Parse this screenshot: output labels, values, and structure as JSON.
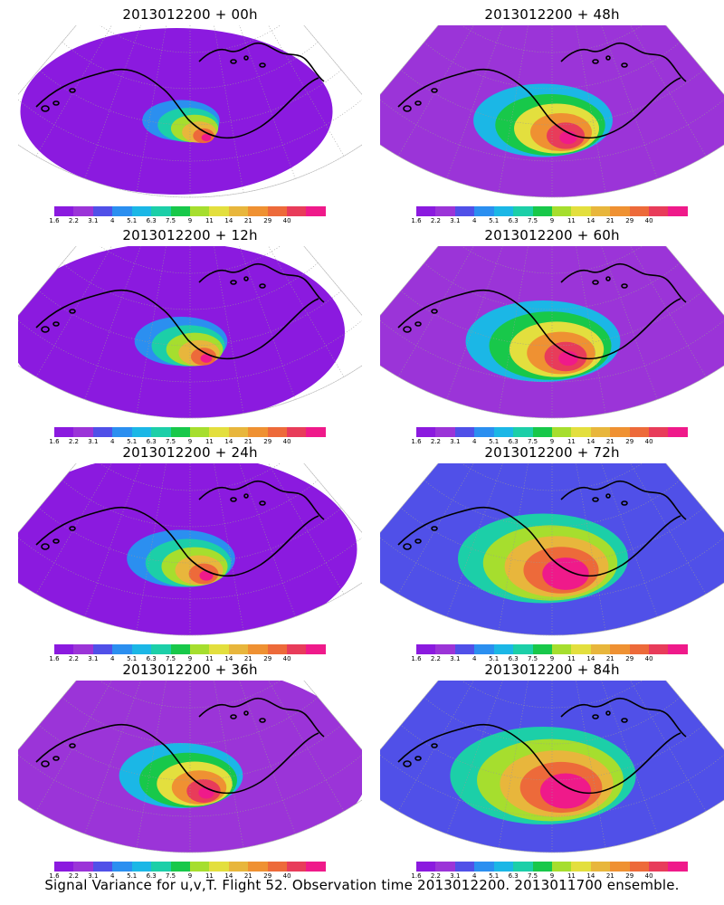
{
  "colors": {
    "palette": [
      "#8b1adf",
      "#9b34d8",
      "#5050e8",
      "#2b8ff0",
      "#1bb7e6",
      "#1ccfa8",
      "#18c84a",
      "#a6de2e",
      "#e3df3e",
      "#e8b63c",
      "#ef9132",
      "#ed6a3a",
      "#e83c5a",
      "#ef1a8a"
    ],
    "contour": "#000000",
    "grid": "#999999"
  },
  "colorbar": {
    "labels": [
      "1.6",
      "2.2",
      "3.1",
      "4",
      "5.1",
      "6.3",
      "7.5",
      "9",
      "11",
      "14",
      "21",
      "29",
      "40"
    ]
  },
  "panels": [
    {
      "title": "2013012200 + 00h",
      "level": 0
    },
    {
      "title": "2013012200 + 48h",
      "level": 4
    },
    {
      "title": "2013012200 + 12h",
      "level": 1
    },
    {
      "title": "2013012200 + 60h",
      "level": 5
    },
    {
      "title": "2013012200 + 24h",
      "level": 2
    },
    {
      "title": "2013012200 + 72h",
      "level": 6
    },
    {
      "title": "2013012200 + 36h",
      "level": 3
    },
    {
      "title": "2013012200 + 84h",
      "level": 7
    }
  ],
  "caption": "Signal Variance for u,v,T. Flight 52. Observation time 2013012200. 2013011700 ensemble."
}
